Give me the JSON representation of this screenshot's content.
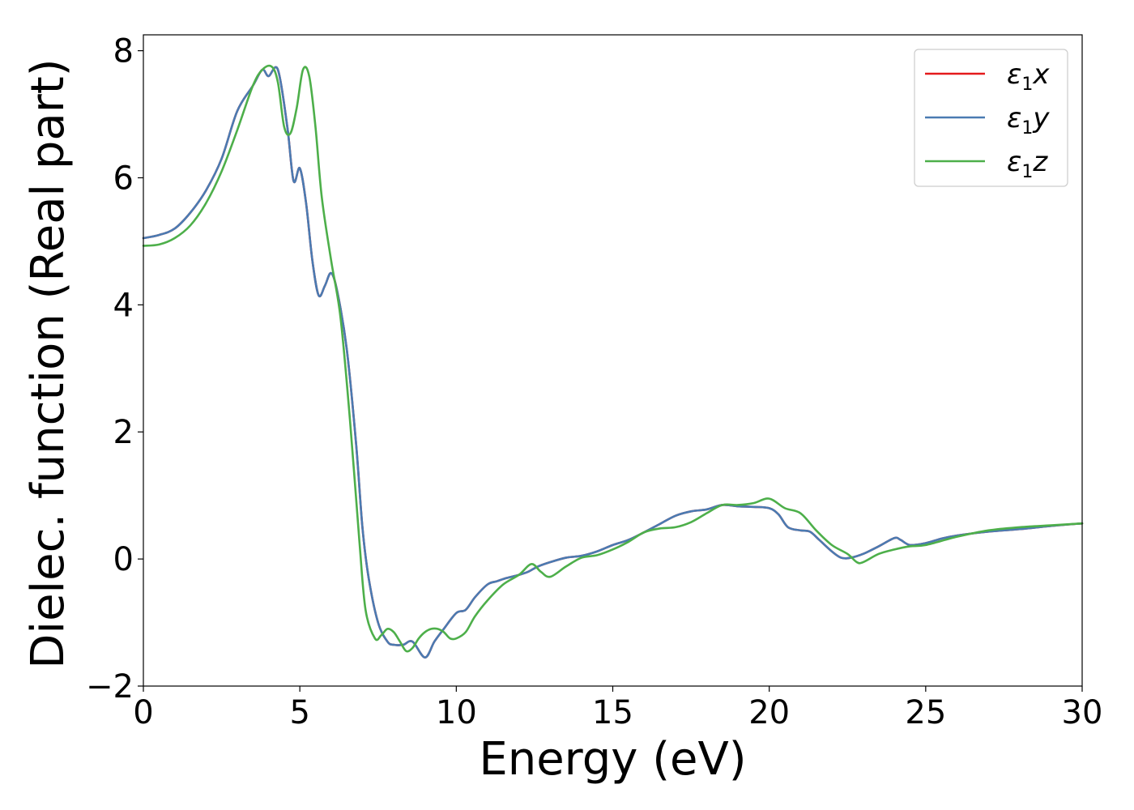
{
  "chart_data": {
    "type": "line",
    "title": "",
    "xlabel": "Energy (eV)",
    "ylabel": "Dielec. function (Real part)",
    "xlim": [
      0,
      30
    ],
    "ylim": [
      -2,
      8.25
    ],
    "xticks": [
      0,
      5,
      10,
      15,
      20,
      25,
      30
    ],
    "yticks": [
      -2,
      0,
      2,
      4,
      6,
      8
    ],
    "xtick_labels": [
      "0",
      "5",
      "10",
      "15",
      "20",
      "25",
      "30"
    ],
    "ytick_labels": [
      "−2",
      "0",
      "2",
      "4",
      "6",
      "8"
    ],
    "grid": false,
    "legend_position": "top-right",
    "series": [
      {
        "name": "ε1x",
        "label_main": "ε",
        "label_sub": "1",
        "label_tail": "x",
        "color": "#e41a1c",
        "x": [
          0,
          0.5,
          1,
          1.5,
          2,
          2.5,
          3,
          3.5,
          3.8,
          4,
          4.3,
          4.6,
          4.8,
          5,
          5.2,
          5.4,
          5.6,
          5.8,
          6,
          6.2,
          6.5,
          6.8,
          7,
          7.2,
          7.5,
          7.8,
          8,
          8.3,
          8.6,
          9,
          9.3,
          9.6,
          10,
          10.3,
          10.6,
          11,
          11.3,
          11.6,
          12,
          12.3,
          12.6,
          13,
          13.5,
          14,
          14.5,
          15,
          15.5,
          16,
          16.5,
          17,
          17.5,
          18,
          18.5,
          19,
          19.5,
          20,
          20.3,
          20.6,
          21,
          21.3,
          21.6,
          22,
          22.3,
          22.6,
          23,
          23.5,
          24,
          24.2,
          24.5,
          25,
          25.5,
          26,
          27,
          28,
          29,
          30
        ],
        "values": [
          5.05,
          5.1,
          5.2,
          5.45,
          5.8,
          6.3,
          7.05,
          7.45,
          7.7,
          7.6,
          7.7,
          6.8,
          5.95,
          6.15,
          5.6,
          4.7,
          4.15,
          4.3,
          4.5,
          4.2,
          3.3,
          1.8,
          0.5,
          -0.3,
          -1.0,
          -1.3,
          -1.35,
          -1.35,
          -1.3,
          -1.55,
          -1.3,
          -1.1,
          -0.85,
          -0.8,
          -0.6,
          -0.4,
          -0.35,
          -0.3,
          -0.25,
          -0.2,
          -0.12,
          -0.05,
          0.02,
          0.05,
          0.12,
          0.22,
          0.3,
          0.42,
          0.55,
          0.68,
          0.75,
          0.78,
          0.85,
          0.83,
          0.82,
          0.8,
          0.7,
          0.5,
          0.45,
          0.43,
          0.3,
          0.12,
          0.02,
          0.02,
          0.08,
          0.2,
          0.33,
          0.3,
          0.22,
          0.25,
          0.32,
          0.37,
          0.43,
          0.47,
          0.52,
          0.56
        ]
      },
      {
        "name": "ε1y",
        "label_main": "ε",
        "label_sub": "1",
        "label_tail": "y",
        "color": "#4a7bb2",
        "x": [
          0,
          0.5,
          1,
          1.5,
          2,
          2.5,
          3,
          3.5,
          3.8,
          4,
          4.3,
          4.6,
          4.8,
          5,
          5.2,
          5.4,
          5.6,
          5.8,
          6,
          6.2,
          6.5,
          6.8,
          7,
          7.2,
          7.5,
          7.8,
          8,
          8.3,
          8.6,
          9,
          9.3,
          9.6,
          10,
          10.3,
          10.6,
          11,
          11.3,
          11.6,
          12,
          12.3,
          12.6,
          13,
          13.5,
          14,
          14.5,
          15,
          15.5,
          16,
          16.5,
          17,
          17.5,
          18,
          18.5,
          19,
          19.5,
          20,
          20.3,
          20.6,
          21,
          21.3,
          21.6,
          22,
          22.3,
          22.6,
          23,
          23.5,
          24,
          24.2,
          24.5,
          25,
          25.5,
          26,
          27,
          28,
          29,
          30
        ],
        "values": [
          5.05,
          5.1,
          5.2,
          5.45,
          5.8,
          6.3,
          7.05,
          7.45,
          7.7,
          7.6,
          7.7,
          6.8,
          5.95,
          6.15,
          5.6,
          4.7,
          4.15,
          4.3,
          4.5,
          4.2,
          3.3,
          1.8,
          0.5,
          -0.3,
          -1.0,
          -1.3,
          -1.35,
          -1.35,
          -1.3,
          -1.55,
          -1.3,
          -1.1,
          -0.85,
          -0.8,
          -0.6,
          -0.4,
          -0.35,
          -0.3,
          -0.25,
          -0.2,
          -0.12,
          -0.05,
          0.02,
          0.05,
          0.12,
          0.22,
          0.3,
          0.42,
          0.55,
          0.68,
          0.75,
          0.78,
          0.85,
          0.83,
          0.82,
          0.8,
          0.7,
          0.5,
          0.45,
          0.43,
          0.3,
          0.12,
          0.02,
          0.02,
          0.08,
          0.2,
          0.33,
          0.3,
          0.22,
          0.25,
          0.32,
          0.37,
          0.43,
          0.47,
          0.52,
          0.56
        ]
      },
      {
        "name": "ε1z",
        "label_main": "ε",
        "label_sub": "1",
        "label_tail": "z",
        "color": "#4daf4a",
        "x": [
          0,
          0.5,
          1,
          1.5,
          2,
          2.5,
          3,
          3.5,
          3.8,
          4.1,
          4.3,
          4.5,
          4.7,
          4.9,
          5.1,
          5.3,
          5.5,
          5.7,
          6,
          6.3,
          6.6,
          6.9,
          7.1,
          7.4,
          7.6,
          7.8,
          8,
          8.2,
          8.4,
          8.6,
          8.8,
          9,
          9.2,
          9.4,
          9.6,
          9.8,
          10,
          10.3,
          10.6,
          11,
          11.5,
          12,
          12.4,
          12.7,
          13,
          13.5,
          14,
          14.5,
          15,
          15.5,
          16,
          16.5,
          17,
          17.5,
          18,
          18.5,
          19,
          19.5,
          20,
          20.5,
          21,
          21.5,
          22,
          22.5,
          22.8,
          23,
          23.5,
          24,
          24.5,
          25,
          26,
          27,
          28,
          29,
          30
        ],
        "values": [
          4.93,
          4.95,
          5.05,
          5.25,
          5.6,
          6.1,
          6.75,
          7.45,
          7.7,
          7.75,
          7.5,
          6.8,
          6.7,
          7.1,
          7.7,
          7.6,
          6.8,
          5.7,
          4.7,
          3.8,
          2.2,
          0.3,
          -0.8,
          -1.25,
          -1.2,
          -1.1,
          -1.15,
          -1.3,
          -1.45,
          -1.4,
          -1.25,
          -1.15,
          -1.1,
          -1.1,
          -1.15,
          -1.25,
          -1.25,
          -1.15,
          -0.9,
          -0.65,
          -0.4,
          -0.25,
          -0.08,
          -0.2,
          -0.28,
          -0.12,
          0.02,
          0.06,
          0.15,
          0.27,
          0.42,
          0.48,
          0.5,
          0.58,
          0.72,
          0.85,
          0.85,
          0.88,
          0.95,
          0.8,
          0.72,
          0.45,
          0.22,
          0.08,
          -0.05,
          -0.05,
          0.08,
          0.15,
          0.2,
          0.22,
          0.35,
          0.45,
          0.5,
          0.53,
          0.56
        ]
      }
    ]
  },
  "colors": {
    "background": "#ffffff",
    "axes": "#000000",
    "legend_border": "#cccccc"
  }
}
